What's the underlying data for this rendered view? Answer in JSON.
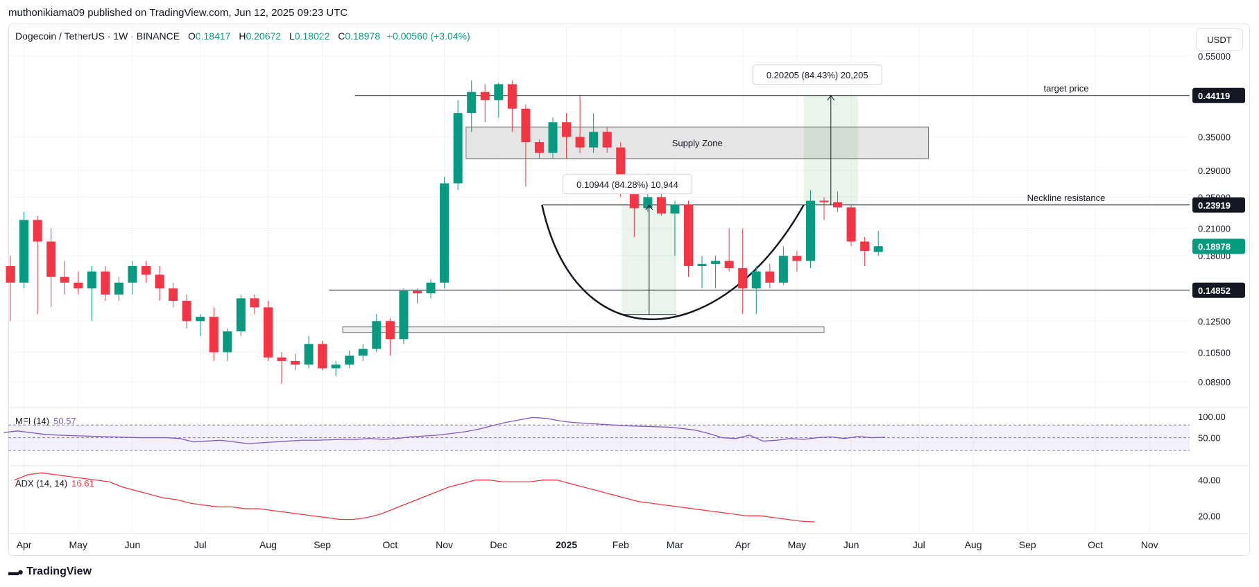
{
  "credit": "muthonikiama09 published on TradingView.com, Jun 12, 2025 09:23 UTC",
  "legend": {
    "symbol": "Dogecoin / TetherUS · 1W · BINANCE",
    "open_label": "O",
    "open": "0.18417",
    "high_label": "H",
    "high": "0.20672",
    "low_label": "L",
    "low": "0.18022",
    "close_label": "C",
    "close": "0.18978",
    "change": "+0.00560 (+3.04%)"
  },
  "currency": "USDT",
  "brand": "TradingView",
  "colors": {
    "up": "#089981",
    "down": "#f23645",
    "mfi": "#7e57c2",
    "adx": "#f23645",
    "grid": "#f0f3fa"
  },
  "chart_data": {
    "type": "candlestick",
    "price_axis": {
      "scale": "log",
      "ticks": [
        "0.55000",
        "0.35000",
        "0.29000",
        "0.25000",
        "0.21000",
        "0.18000",
        "0.12500",
        "0.10500",
        "0.08900"
      ],
      "tick_values": [
        0.55,
        0.35,
        0.29,
        0.25,
        0.21,
        0.18,
        0.125,
        0.105,
        0.089
      ],
      "labels": [
        {
          "text": "0.44119",
          "value": 0.44119,
          "style": "dark"
        },
        {
          "text": "0.23919",
          "value": 0.23919,
          "style": "dark"
        },
        {
          "text": "0.18978",
          "value": 0.18978,
          "style": "green"
        },
        {
          "text": "0.14852",
          "value": 0.14852,
          "style": "dark"
        }
      ]
    },
    "time_axis": [
      "Apr",
      "May",
      "Jun",
      "Jul",
      "Aug",
      "Sep",
      "Oct",
      "Nov",
      "Dec",
      "2025",
      "Feb",
      "Mar",
      "Apr",
      "May",
      "Jun",
      "Jul",
      "Aug",
      "Sep",
      "Oct",
      "Nov"
    ],
    "time_axis_week_index": [
      1,
      5,
      9,
      14,
      19,
      23,
      28,
      32,
      36,
      41,
      45,
      49,
      54,
      58,
      62,
      67,
      71,
      75,
      80,
      84
    ],
    "candles": [
      [
        0.17,
        0.18,
        0.125,
        0.155
      ],
      [
        0.155,
        0.23,
        0.15,
        0.22
      ],
      [
        0.22,
        0.225,
        0.13,
        0.195
      ],
      [
        0.195,
        0.21,
        0.135,
        0.16
      ],
      [
        0.16,
        0.175,
        0.145,
        0.155
      ],
      [
        0.155,
        0.165,
        0.145,
        0.15
      ],
      [
        0.15,
        0.17,
        0.125,
        0.165
      ],
      [
        0.165,
        0.17,
        0.14,
        0.145
      ],
      [
        0.145,
        0.16,
        0.14,
        0.155
      ],
      [
        0.155,
        0.175,
        0.145,
        0.17
      ],
      [
        0.17,
        0.175,
        0.155,
        0.162
      ],
      [
        0.162,
        0.17,
        0.14,
        0.15
      ],
      [
        0.15,
        0.155,
        0.135,
        0.14
      ],
      [
        0.14,
        0.145,
        0.12,
        0.125
      ],
      [
        0.125,
        0.13,
        0.115,
        0.128
      ],
      [
        0.128,
        0.135,
        0.1,
        0.105
      ],
      [
        0.105,
        0.12,
        0.1,
        0.118
      ],
      [
        0.118,
        0.145,
        0.115,
        0.142
      ],
      [
        0.142,
        0.145,
        0.13,
        0.135
      ],
      [
        0.135,
        0.14,
        0.1,
        0.102
      ],
      [
        0.102,
        0.105,
        0.088,
        0.1
      ],
      [
        0.1,
        0.104,
        0.095,
        0.098
      ],
      [
        0.098,
        0.115,
        0.096,
        0.11
      ],
      [
        0.11,
        0.112,
        0.095,
        0.096
      ],
      [
        0.096,
        0.1,
        0.092,
        0.098
      ],
      [
        0.098,
        0.106,
        0.096,
        0.103
      ],
      [
        0.103,
        0.11,
        0.1,
        0.107
      ],
      [
        0.107,
        0.13,
        0.105,
        0.125
      ],
      [
        0.125,
        0.127,
        0.103,
        0.113
      ],
      [
        0.113,
        0.15,
        0.11,
        0.148
      ],
      [
        0.148,
        0.15,
        0.138,
        0.146
      ],
      [
        0.146,
        0.158,
        0.142,
        0.155
      ],
      [
        0.155,
        0.28,
        0.15,
        0.27
      ],
      [
        0.27,
        0.43,
        0.26,
        0.4
      ],
      [
        0.4,
        0.48,
        0.36,
        0.45
      ],
      [
        0.45,
        0.47,
        0.38,
        0.43
      ],
      [
        0.43,
        0.475,
        0.39,
        0.47
      ],
      [
        0.47,
        0.48,
        0.36,
        0.41
      ],
      [
        0.41,
        0.42,
        0.265,
        0.34
      ],
      [
        0.34,
        0.345,
        0.31,
        0.32
      ],
      [
        0.32,
        0.39,
        0.31,
        0.38
      ],
      [
        0.38,
        0.4,
        0.31,
        0.35
      ],
      [
        0.35,
        0.44,
        0.32,
        0.33
      ],
      [
        0.33,
        0.4,
        0.32,
        0.36
      ],
      [
        0.36,
        0.37,
        0.32,
        0.33
      ],
      [
        0.33,
        0.34,
        0.25,
        0.255
      ],
      [
        0.255,
        0.28,
        0.2,
        0.235
      ],
      [
        0.235,
        0.285,
        0.23,
        0.25
      ],
      [
        0.25,
        0.255,
        0.225,
        0.228
      ],
      [
        0.228,
        0.245,
        0.18,
        0.24
      ],
      [
        0.24,
        0.245,
        0.16,
        0.17
      ],
      [
        0.17,
        0.18,
        0.15,
        0.172
      ],
      [
        0.172,
        0.18,
        0.15,
        0.175
      ],
      [
        0.175,
        0.21,
        0.165,
        0.168
      ],
      [
        0.168,
        0.21,
        0.13,
        0.15
      ],
      [
        0.15,
        0.17,
        0.13,
        0.165
      ],
      [
        0.165,
        0.172,
        0.15,
        0.155
      ],
      [
        0.155,
        0.19,
        0.153,
        0.18
      ],
      [
        0.18,
        0.185,
        0.165,
        0.175
      ],
      [
        0.175,
        0.26,
        0.168,
        0.245
      ],
      [
        0.245,
        0.25,
        0.22,
        0.243
      ],
      [
        0.243,
        0.258,
        0.23,
        0.236
      ],
      [
        0.236,
        0.24,
        0.19,
        0.195
      ],
      [
        0.195,
        0.2,
        0.17,
        0.185
      ],
      [
        0.184,
        0.207,
        0.18,
        0.19
      ]
    ],
    "annotations": {
      "target_line": {
        "text": "target price",
        "value": 0.44119
      },
      "neckline": {
        "text": "Neckline resistance",
        "value": 0.23919
      },
      "support_line": {
        "value": 0.14852
      },
      "supply_zone": {
        "text": "Supply Zone",
        "top": 0.37,
        "bottom": 0.31
      },
      "demand_box": {
        "top": 0.121,
        "bottom": 0.118
      },
      "measure_1": {
        "text": "0.10944 (84.28%) 10,944",
        "from": 0.1297,
        "to": 0.23919
      },
      "measure_2": {
        "text": "0.20205 (84.43%) 20,205",
        "from": 0.23919,
        "to": 0.44119
      }
    },
    "mfi": {
      "title": "MFI (14)",
      "value": "50.57",
      "ticks": [
        "100.00",
        "50.00"
      ],
      "values": [
        62,
        66,
        62,
        58,
        56,
        55,
        54,
        53,
        52,
        51,
        50,
        50,
        50,
        48,
        40,
        42,
        44,
        40,
        36,
        38,
        40,
        42,
        44,
        44,
        45,
        46,
        46,
        48,
        46,
        48,
        52,
        54,
        56,
        60,
        64,
        70,
        78,
        86,
        92,
        98,
        96,
        90,
        86,
        84,
        82,
        80,
        78,
        77,
        76,
        75,
        72,
        68,
        60,
        50,
        48,
        56,
        42,
        44,
        48,
        46,
        50,
        52,
        48,
        53,
        50,
        51
      ]
    },
    "adx": {
      "title": "ADX (14, 14)",
      "value": "16.61",
      "ticks": [
        "40.00",
        "20.00"
      ],
      "values": [
        40,
        43,
        44,
        43,
        42,
        41,
        40,
        39,
        36,
        34,
        32,
        30,
        29,
        27,
        26,
        25,
        25,
        24,
        24,
        23,
        22,
        21,
        20,
        19,
        18,
        18,
        19,
        21,
        24,
        27,
        30,
        33,
        36,
        38,
        40,
        40,
        39,
        39,
        39,
        40,
        40,
        38,
        36,
        34,
        32,
        30,
        28,
        27,
        26,
        25,
        24,
        23,
        22,
        21,
        20,
        20,
        19,
        18,
        17,
        16.6
      ]
    }
  }
}
